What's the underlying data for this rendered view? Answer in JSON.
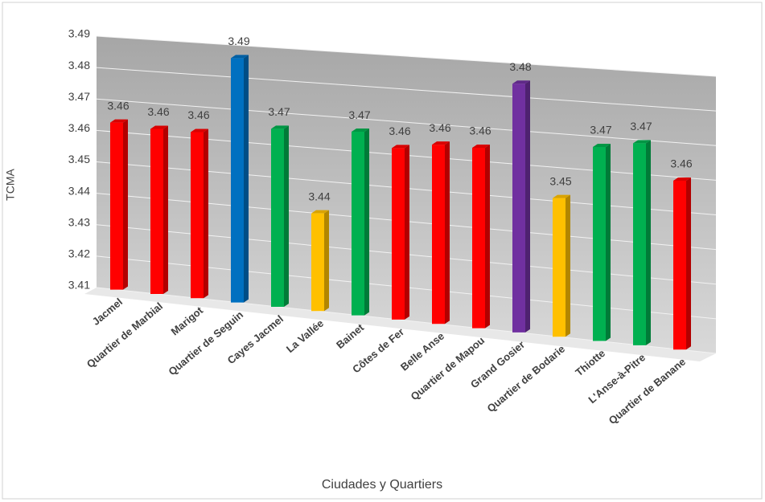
{
  "chart_data": {
    "type": "bar",
    "y_axis_label": "TCMA",
    "x_axis_label": "Ciudades y Quartiers",
    "categories": [
      "Jacmel",
      "Quartier de Marbial",
      "Marigot",
      "Quartier de Seguin",
      "Cayes Jacmel",
      "La Vallée",
      "Bainet",
      "Côtes de Fer",
      "Belle Anse",
      "Quartier de Mapou",
      "Grand Gosier",
      "Quartier de Bodarie",
      "Thiotte",
      "L'Anse-à-Pitre",
      "Quartier de Banane"
    ],
    "values": [
      3.463,
      3.462,
      3.462,
      3.486,
      3.465,
      3.44,
      3.466,
      3.462,
      3.464,
      3.464,
      3.484,
      3.451,
      3.467,
      3.469,
      3.459
    ],
    "value_labels": [
      "3.46",
      "3.46",
      "3.46",
      "3.49",
      "3.47",
      "3.44",
      "3.47",
      "3.46",
      "3.46",
      "3.46",
      "3.48",
      "3.45",
      "3.47",
      "3.47",
      "3.46"
    ],
    "colors": [
      "#ff0000",
      "#ff0000",
      "#ff0000",
      "#0070c0",
      "#00b050",
      "#ffc000",
      "#00b050",
      "#ff0000",
      "#ff0000",
      "#ff0000",
      "#7030a0",
      "#ffc000",
      "#00b050",
      "#00b050",
      "#ff0000"
    ],
    "ylim": [
      3.41,
      3.49
    ],
    "yticks": [
      3.41,
      3.42,
      3.43,
      3.44,
      3.45,
      3.46,
      3.47,
      3.48,
      3.49
    ],
    "grid": true
  }
}
